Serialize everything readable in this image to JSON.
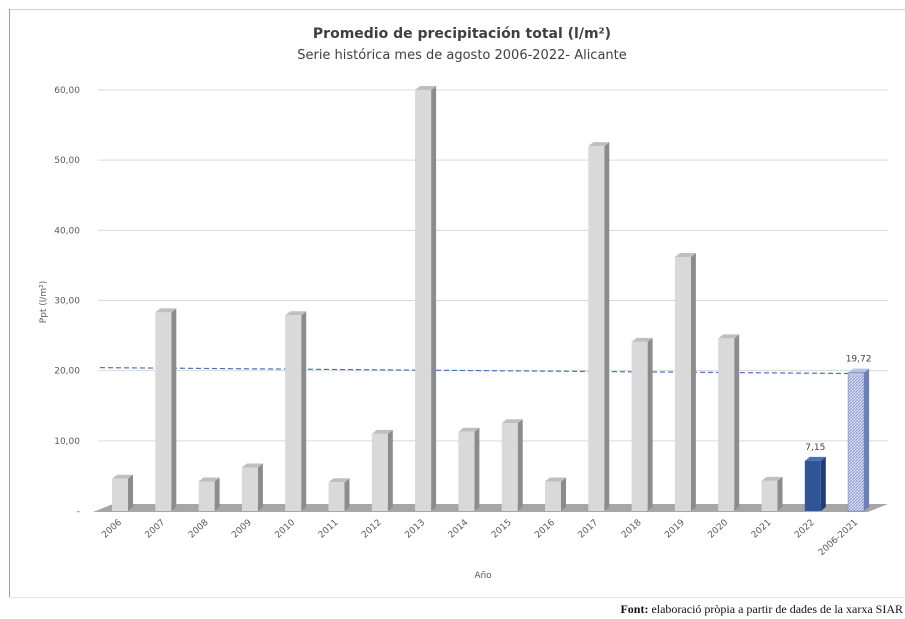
{
  "chart_data": {
    "type": "bar",
    "title": "Promedio de precipitación total (l/m²)",
    "subtitle": "Serie histórica mes de agosto 2006-2022- Alicante",
    "xlabel": "Año",
    "ylabel": "Ppt (l/m²)",
    "categories": [
      "2006",
      "2007",
      "2008",
      "2009",
      "2010",
      "2011",
      "2012",
      "2013",
      "2014",
      "2015",
      "2016",
      "2017",
      "2018",
      "2019",
      "2020",
      "2021",
      "2022",
      "2006-2021"
    ],
    "values": [
      4.6,
      28.3,
      4.2,
      6.2,
      27.9,
      4.1,
      11.0,
      60.0,
      11.3,
      12.5,
      4.2,
      52.0,
      24.1,
      36.2,
      24.6,
      4.3,
      7.15,
      19.72
    ],
    "ylim": [
      0,
      60
    ],
    "yticks": [
      "-",
      "10,00",
      "20,00",
      "30,00",
      "40,00",
      "50,00",
      "60,00"
    ],
    "data_labels": [
      {
        "category": "2022",
        "text": "7,15"
      },
      {
        "category": "2006-2021",
        "text": "19,72"
      }
    ],
    "reference_line": {
      "value": 19.72,
      "style": "dashed",
      "color": "#4472c4"
    },
    "colors": {
      "default_bar": "#d9d9d9",
      "highlight_bar": "#2f5597",
      "average_bar": "#8f9fd6",
      "floor": "#a6a6a6",
      "grid": "#d9d9d9"
    },
    "grid": true,
    "legend": "none"
  },
  "source": {
    "label": "Font:",
    "text": "elaboració pròpia a partir de dades de la xarxa SIAR"
  }
}
